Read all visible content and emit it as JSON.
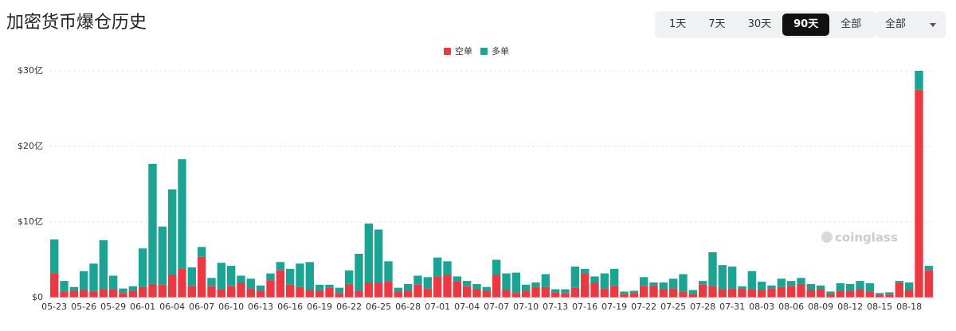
{
  "header": {
    "title": "加密货币爆仓历史",
    "ranges": [
      "1天",
      "7天",
      "30天",
      "90天",
      "全部"
    ],
    "dropdown": "全部"
  },
  "watermark": "coinglass",
  "chart_data": {
    "type": "stacked_bar",
    "categories": [
      "05-23",
      null,
      null,
      "05-26",
      null,
      null,
      "05-29",
      null,
      null,
      "06-01",
      null,
      null,
      "06-04",
      null,
      null,
      "06-07",
      null,
      null,
      "06-10",
      null,
      null,
      "06-13",
      null,
      null,
      "06-16",
      null,
      null,
      "06-19",
      null,
      null,
      "06-22",
      null,
      null,
      "06-25",
      null,
      null,
      "06-28",
      null,
      null,
      "07-01",
      null,
      null,
      "07-04",
      null,
      null,
      "07-07",
      null,
      null,
      "07-10",
      null,
      null,
      "07-13",
      null,
      null,
      "07-16",
      null,
      null,
      "07-19",
      null,
      null,
      "07-22",
      null,
      null,
      "07-25",
      null,
      null,
      "07-28",
      null,
      null,
      "07-31",
      null,
      null,
      "08-03",
      null,
      null,
      "08-06",
      null,
      null,
      "08-09",
      null,
      null,
      "08-12",
      null,
      null,
      "08-15",
      null,
      null,
      "08-18",
      null,
      null
    ],
    "series": [
      {
        "name": "空单",
        "color": "#ea3943",
        "values": [
          3.2,
          0.8,
          0.9,
          1.0,
          0.8,
          1.1,
          1.1,
          0.6,
          0.9,
          1.4,
          1.8,
          1.7,
          3.0,
          3.8,
          1.5,
          5.4,
          1.5,
          1.1,
          1.5,
          2.0,
          1.2,
          0.9,
          2.3,
          3.6,
          1.7,
          1.4,
          1.0,
          0.9,
          1.3,
          0.6,
          1.8,
          0.9,
          2.0,
          2.0,
          2.1,
          0.8,
          0.9,
          1.7,
          1.2,
          2.8,
          3.0,
          2.2,
          1.5,
          1.1,
          0.9,
          3.0,
          1.0,
          0.6,
          0.9,
          1.4,
          1.4,
          0.7,
          0.6,
          1.3,
          3.2,
          2.0,
          1.2,
          1.5,
          0.5,
          0.6,
          1.5,
          1.6,
          1.1,
          1.2,
          0.8,
          0.5,
          1.7,
          1.5,
          1.1,
          1.2,
          1.2,
          1.1,
          1.0,
          1.2,
          1.4,
          1.5,
          1.8,
          1.0,
          1.1,
          0.5,
          0.9,
          0.9,
          1.1,
          0.8,
          0.4,
          0.4,
          1.9,
          1.0,
          27.5,
          3.6
        ]
      },
      {
        "name": "多单",
        "color": "#1ba393",
        "values": [
          4.5,
          1.4,
          0.5,
          2.5,
          3.7,
          6.5,
          1.8,
          0.6,
          0.6,
          5.1,
          15.9,
          7.7,
          11.3,
          14.5,
          2.5,
          1.3,
          1.1,
          3.5,
          2.7,
          0.9,
          1.3,
          0.7,
          0.9,
          1.1,
          2.1,
          3.1,
          3.7,
          0.8,
          0.4,
          0.7,
          1.8,
          4.9,
          7.8,
          7.0,
          2.7,
          0.5,
          0.9,
          1.2,
          1.5,
          2.5,
          1.8,
          0.6,
          0.7,
          0.7,
          0.5,
          2.0,
          2.2,
          2.7,
          0.8,
          0.6,
          1.7,
          0.4,
          0.5,
          2.8,
          0.6,
          0.8,
          2.0,
          2.3,
          0.3,
          0.3,
          1.2,
          0.4,
          0.9,
          1.3,
          2.3,
          0.5,
          0.5,
          4.5,
          3.2,
          2.9,
          0.3,
          2.4,
          1.1,
          0.4,
          1.1,
          0.7,
          0.8,
          0.8,
          0.5,
          0.3,
          1.0,
          0.9,
          1.1,
          1.1,
          0.2,
          0.3,
          0.3,
          1.0,
          2.5,
          0.6
        ]
      }
    ],
    "ylim": [
      0,
      30
    ],
    "yticks": [
      {
        "value": 0,
        "label": "$0"
      },
      {
        "value": 10,
        "label": "$10亿"
      },
      {
        "value": 20,
        "label": "$20亿"
      },
      {
        "value": 30,
        "label": "$30亿"
      }
    ],
    "grid": true,
    "legend": "top"
  }
}
